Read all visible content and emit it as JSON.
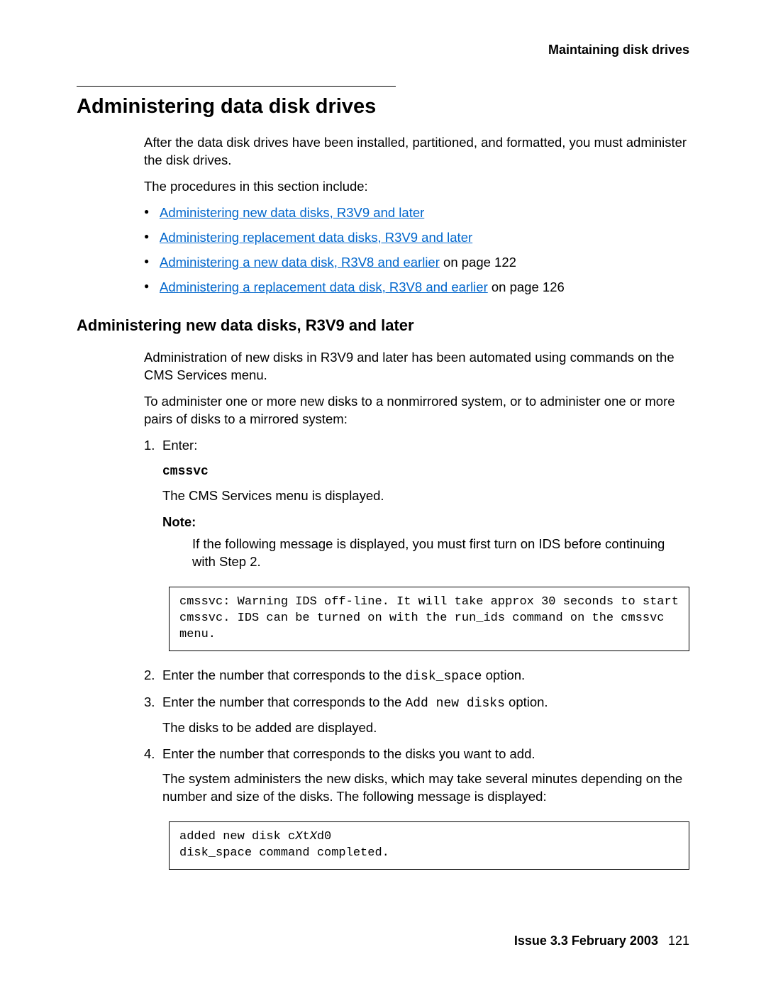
{
  "header": {
    "section": "Maintaining disk drives"
  },
  "title": "Administering data disk drives",
  "intro": {
    "p1": "After the data disk drives have been installed, partitioned, and formatted, you must administer the disk drives.",
    "p2": "The procedures in this section include:"
  },
  "bullets": [
    {
      "link": "Administering new data disks, R3V9 and later",
      "suffix": ""
    },
    {
      "link": "Administering replacement data disks, R3V9 and later",
      "suffix": ""
    },
    {
      "link": "Administering a new data disk, R3V8 and earlier",
      "suffix": " on page 122"
    },
    {
      "link": "Administering a replacement data disk, R3V8 and earlier",
      "suffix": " on page 126"
    }
  ],
  "h2": "Administering new data disks, R3V9 and later",
  "section2": {
    "p1": "Administration of new disks in R3V9 and later has been automated using commands on the CMS Services menu.",
    "p2": "To administer one or more new disks to a nonmirrored system, or to administer one or more pairs of disks to a mirrored system:"
  },
  "steps": {
    "s1": {
      "label": "Enter:",
      "cmd": "cmssvc",
      "result": "The CMS Services menu is displayed.",
      "note_label": "Note:",
      "note_body": "If the following message is displayed, you must first turn on IDS before continuing with Step 2."
    },
    "code1": "cmssvc: Warning IDS off-line. It will take approx 30 seconds to start\ncmssvc. IDS can be turned on with the run_ids command on the cmssvc menu.",
    "s2": {
      "pre": "Enter the number that corresponds to the ",
      "mono": "disk_space",
      "post": " option."
    },
    "s3": {
      "pre": "Enter the number that corresponds to the ",
      "mono": "Add new disks",
      "post": " option.",
      "result": "The disks to be added are displayed."
    },
    "s4": {
      "text": "Enter the number that corresponds to the disks you want to add.",
      "result": "The system administers the new disks, which may take several minutes depending on the number and size of the disks. The following message is displayed:"
    },
    "code2_a": "added new disk c",
    "code2_b": "X",
    "code2_c": "t",
    "code2_d": "X",
    "code2_e": "d0\ndisk_space command completed."
  },
  "footer": {
    "issue": "Issue 3.3   February 2003",
    "page": "121"
  },
  "colors": {
    "link": "#0066cc",
    "text": "#000000",
    "bg": "#ffffff"
  }
}
